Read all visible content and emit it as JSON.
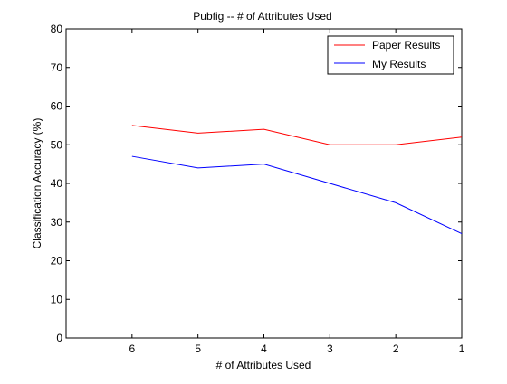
{
  "chart_data": {
    "type": "line",
    "title": "Pubfig -- # of Attributes Used",
    "xlabel": "# of Attributes Used",
    "ylabel": "Classification Accuracy (%)",
    "x": [
      6,
      5,
      4,
      3,
      2,
      1
    ],
    "x_direction": "reversed",
    "xlim": [
      7,
      1
    ],
    "ylim": [
      0,
      80
    ],
    "xticks": [
      "6",
      "5",
      "4",
      "3",
      "2",
      "1"
    ],
    "yticks": [
      "0",
      "10",
      "20",
      "30",
      "40",
      "50",
      "60",
      "70",
      "80"
    ],
    "grid": false,
    "legend_position": "top-right",
    "series": [
      {
        "name": "Paper Results",
        "color": "#ff0000",
        "values": [
          55,
          53,
          54,
          50,
          50,
          52
        ]
      },
      {
        "name": "My Results",
        "color": "#0000ff",
        "values": [
          47,
          44,
          45,
          40,
          35,
          27
        ]
      }
    ]
  }
}
